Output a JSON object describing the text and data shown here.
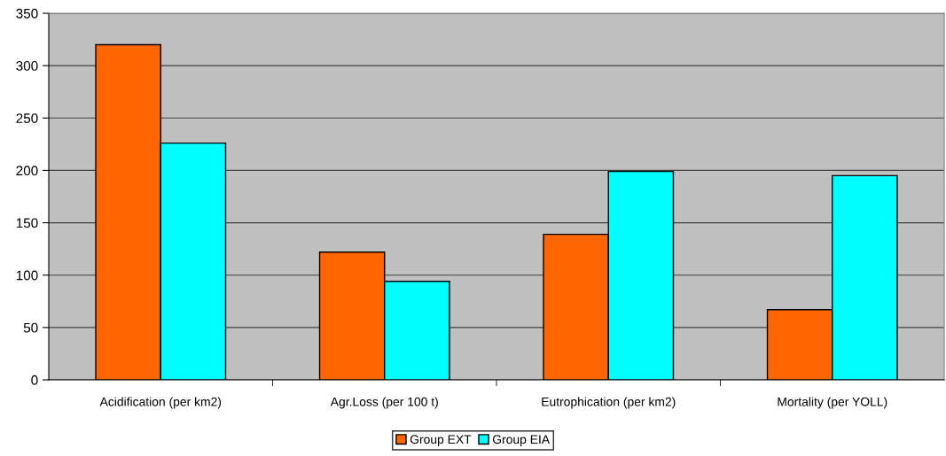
{
  "chart_data": {
    "type": "bar",
    "categories": [
      "Acidification (per km2)",
      "Agr.Loss (per 100 t)",
      "Eutrophication (per km2)",
      "Mortality (per YOLL)"
    ],
    "series": [
      {
        "name": "Group EXT",
        "color": "#ff6600",
        "values": [
          320,
          122,
          139,
          67
        ]
      },
      {
        "name": "Group EIA",
        "color": "#00ffff",
        "values": [
          226,
          94,
          199,
          195
        ]
      }
    ],
    "ylim": [
      0,
      350
    ],
    "yticks": [
      0,
      50,
      100,
      150,
      200,
      250,
      300,
      350
    ],
    "grid": "y",
    "legend": "bottom"
  }
}
